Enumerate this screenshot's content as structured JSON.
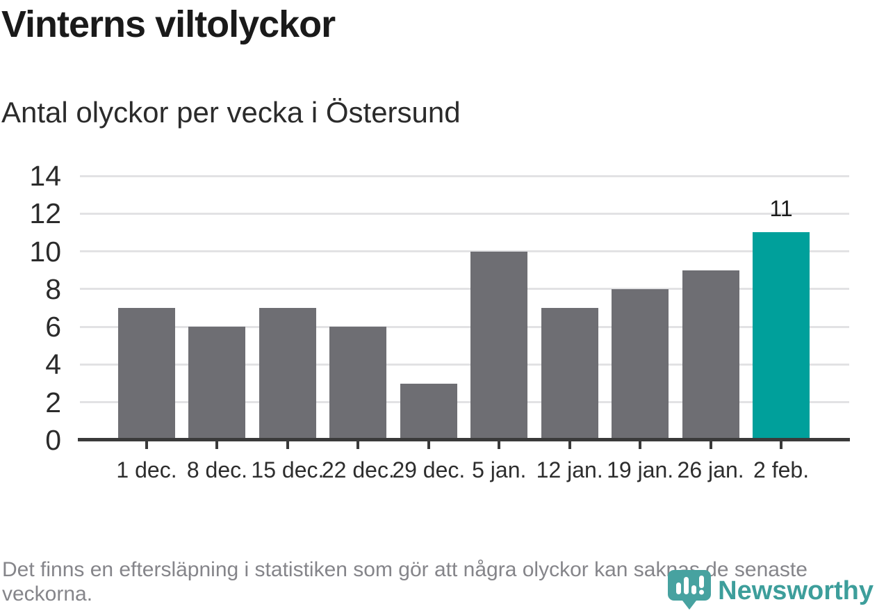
{
  "chart_data": {
    "type": "bar",
    "title": "Vinterns viltolyckor",
    "subtitle": "Antal olyckor per vecka i Östersund",
    "categories": [
      "1 dec.",
      "8 dec.",
      "15 dec.",
      "22 dec.",
      "29 dec.",
      "5 jan.",
      "12 jan.",
      "19 jan.",
      "26 jan.",
      "2 feb."
    ],
    "values": [
      7,
      6,
      7,
      6,
      3,
      10,
      7,
      8,
      9,
      11
    ],
    "xlabel": "",
    "ylabel": "",
    "ylim": [
      0,
      14
    ],
    "yticks": [
      0,
      2,
      4,
      6,
      8,
      10,
      12,
      14
    ],
    "grid": "horizontal",
    "legend": "none",
    "bar_color": "#6e6e73",
    "highlight_index": 9,
    "highlight_color": "#00a09b",
    "value_labels": [
      {
        "index": 9,
        "text": "11"
      }
    ]
  },
  "footer": {
    "note": "Det finns en eftersläpning i statistiken som gör att några olyckor kan saknas de senaste veckorna."
  },
  "logo": {
    "brand": "Newsworthy",
    "icon": "newsworthy-pin-icon",
    "color": "#3d9e9b",
    "icon_color": "#47a2a0"
  }
}
